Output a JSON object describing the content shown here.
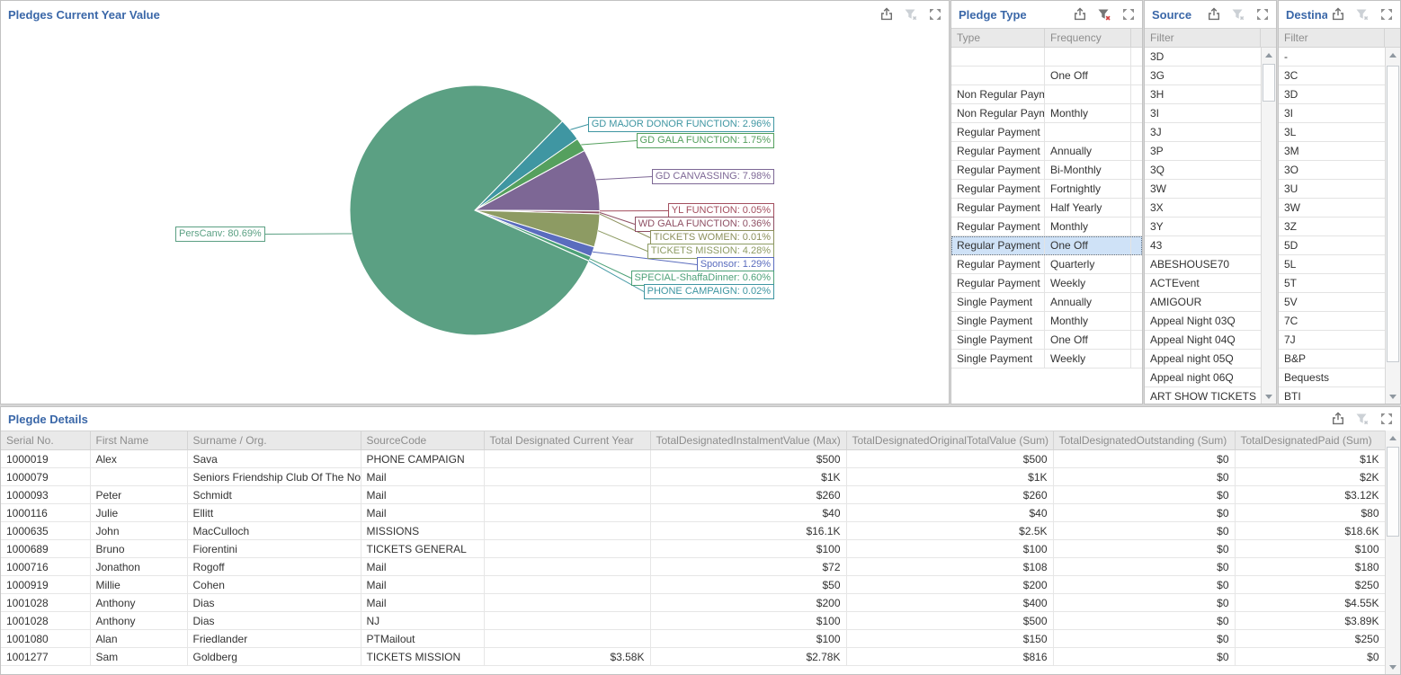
{
  "pie_panel": {
    "title": "Pledges Current Year Value",
    "filter_active": false,
    "chart_data": {
      "type": "pie",
      "title": "Pledges Current Year Value",
      "start_angle_deg": 45.5,
      "direction": "clockwise",
      "slices": [
        {
          "label": "GD MAJOR DONOR FUNCTION",
          "value": 2.96,
          "pct_label": "2.96%",
          "color": "#3f96a2"
        },
        {
          "label": "GD GALA FUNCTION",
          "value": 1.75,
          "pct_label": "1.75%",
          "color": "#55a05e"
        },
        {
          "label": "GD CANVASSING",
          "value": 7.98,
          "pct_label": "7.98%",
          "color": "#7d6795"
        },
        {
          "label": "YL FUNCTION",
          "value": 0.05,
          "pct_label": "0.05%",
          "color": "#a34e5e"
        },
        {
          "label": "WD GALA FUNCTION",
          "value": 0.36,
          "pct_label": "0.36%",
          "color": "#8e4f63"
        },
        {
          "label": "TICKETS WOMEN",
          "value": 0.01,
          "pct_label": "0.01%",
          "color": "#8c8f5c"
        },
        {
          "label": "TICKETS MISSION",
          "value": 4.28,
          "pct_label": "4.28%",
          "color": "#8d9b63"
        },
        {
          "label": "Sponsor",
          "value": 1.29,
          "pct_label": "1.29%",
          "color": "#5a6cbe"
        },
        {
          "label": "SPECIAL-ShaffaDinner",
          "value": 0.6,
          "pct_label": "0.60%",
          "color": "#4da178"
        },
        {
          "label": "PHONE CAMPAIGN",
          "value": 0.02,
          "pct_label": "0.02%",
          "color": "#3f96a2"
        },
        {
          "label": "PersCanv",
          "value": 80.69,
          "pct_label": "80.69%",
          "color": "#5ba083"
        }
      ]
    }
  },
  "pledge_type_panel": {
    "title": "Pledge Type",
    "filter_active": true,
    "columns": [
      "Type",
      "Frequency"
    ],
    "selected_index": 10,
    "rows": [
      [
        "",
        ""
      ],
      [
        "",
        "One Off"
      ],
      [
        "Non Regular Paym...",
        ""
      ],
      [
        "Non Regular Paym...",
        "Monthly"
      ],
      [
        "Regular Payment",
        ""
      ],
      [
        "Regular Payment",
        "Annually"
      ],
      [
        "Regular Payment",
        "Bi-Monthly"
      ],
      [
        "Regular Payment",
        "Fortnightly"
      ],
      [
        "Regular Payment",
        "Half Yearly"
      ],
      [
        "Regular Payment",
        "Monthly"
      ],
      [
        "Regular Payment",
        "One Off"
      ],
      [
        "Regular Payment",
        "Quarterly"
      ],
      [
        "Regular Payment",
        "Weekly"
      ],
      [
        "Single Payment",
        "Annually"
      ],
      [
        "Single Payment",
        "Monthly"
      ],
      [
        "Single Payment",
        "One Off"
      ],
      [
        "Single Payment",
        "Weekly"
      ]
    ]
  },
  "source_panel": {
    "title": "Source",
    "filter_active": false,
    "column": "Filter",
    "items": [
      "3D",
      "3G",
      "3H",
      "3I",
      "3J",
      "3P",
      "3Q",
      "3W",
      "3X",
      "3Y",
      "43",
      "ABESHOUSE70",
      "ACTEvent",
      "AMIGOUR",
      "Appeal Night 03Q",
      "Appeal Night 04Q",
      "Appeal night 05Q",
      "Appeal night 06Q",
      "ART SHOW TICKETS"
    ]
  },
  "destination_panel": {
    "title": "Destina...",
    "filter_active": false,
    "column": "Filter",
    "items": [
      "-",
      "3C",
      "3D",
      "3I",
      "3L",
      "3M",
      "3O",
      "3U",
      "3W",
      "3Z",
      "5D",
      "5L",
      "5T",
      "5V",
      "7C",
      "7J",
      "B&P",
      "Bequests",
      "BTI"
    ]
  },
  "details_panel": {
    "title": "Plegde Details",
    "filter_active": false,
    "columns": [
      "Serial No.",
      "First Name",
      "Surname / Org.",
      "SourceCode",
      "Total Designated Current Year",
      "TotalDesignatedInstalmentValue (Max)",
      "TotalDesignatedOriginalTotalValue (Sum)",
      "TotalDesignatedOutstanding (Sum)",
      "TotalDesignatedPaid (Sum)"
    ],
    "rows": [
      [
        "1000019",
        "Alex",
        "Sava",
        "PHONE CAMPAIGN",
        "",
        "$500",
        "$500",
        "$0",
        "$1K"
      ],
      [
        "1000079",
        "",
        "Seniors Friendship Club Of The Nort...",
        "Mail",
        "",
        "$1K",
        "$1K",
        "$0",
        "$2K"
      ],
      [
        "1000093",
        "Peter",
        "Schmidt",
        "Mail",
        "",
        "$260",
        "$260",
        "$0",
        "$3.12K"
      ],
      [
        "1000116",
        "Julie",
        "Ellitt",
        "Mail",
        "",
        "$40",
        "$40",
        "$0",
        "$80"
      ],
      [
        "1000635",
        "John",
        "MacCulloch",
        "MISSIONS",
        "",
        "$16.1K",
        "$2.5K",
        "$0",
        "$18.6K"
      ],
      [
        "1000689",
        "Bruno",
        "Fiorentini",
        "TICKETS GENERAL",
        "",
        "$100",
        "$100",
        "$0",
        "$100"
      ],
      [
        "1000716",
        "Jonathon",
        "Rogoff",
        "Mail",
        "",
        "$72",
        "$108",
        "$0",
        "$180"
      ],
      [
        "1000919",
        "Millie",
        "Cohen",
        "Mail",
        "",
        "$50",
        "$200",
        "$0",
        "$250"
      ],
      [
        "1001028",
        "Anthony",
        "Dias",
        "Mail",
        "",
        "$200",
        "$400",
        "$0",
        "$4.55K"
      ],
      [
        "1001028",
        "Anthony",
        "Dias",
        "NJ",
        "",
        "$100",
        "$500",
        "$0",
        "$3.89K"
      ],
      [
        "1001080",
        "Alan",
        "Friedlander",
        "PTMailout",
        "",
        "$100",
        "$150",
        "$0",
        "$250"
      ],
      [
        "1001277",
        "Sam",
        "Goldberg",
        "TICKETS MISSION",
        "$3.58K",
        "$2.78K",
        "$816",
        "$0",
        "$0"
      ]
    ]
  },
  "colors": {
    "title_blue": "#3a67a8",
    "header_bg": "#e9e9e9",
    "header_text": "#8d8d8d",
    "selected_row_bg": "#cfe2f7",
    "filter_active_x": "#d23f3f",
    "icon_gray": "#6e6e6e",
    "icon_light": "#ccd1d6"
  }
}
